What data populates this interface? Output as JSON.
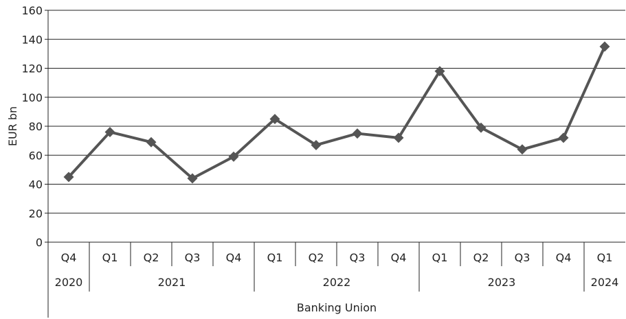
{
  "chart_data": {
    "type": "line",
    "ylabel": "EUR bn",
    "ylim": [
      0,
      160
    ],
    "yticks": [
      0,
      20,
      40,
      60,
      80,
      100,
      120,
      140,
      160
    ],
    "grid": true,
    "categories": [
      "Q4",
      "Q1",
      "Q2",
      "Q3",
      "Q4",
      "Q1",
      "Q2",
      "Q3",
      "Q4",
      "Q1",
      "Q2",
      "Q3",
      "Q4",
      "Q1"
    ],
    "years": [
      {
        "label": "2020",
        "count": 1
      },
      {
        "label": "2021",
        "count": 4
      },
      {
        "label": "2022",
        "count": 4
      },
      {
        "label": "2023",
        "count": 4
      },
      {
        "label": "2024",
        "count": 1
      }
    ],
    "group_label": "Banking Union",
    "series": [
      {
        "values": [
          45,
          76,
          69,
          44,
          59,
          85,
          67,
          75,
          72,
          118,
          79,
          64,
          72,
          135
        ]
      }
    ],
    "colors": {
      "line": "#555555",
      "axis": "#222222"
    }
  }
}
